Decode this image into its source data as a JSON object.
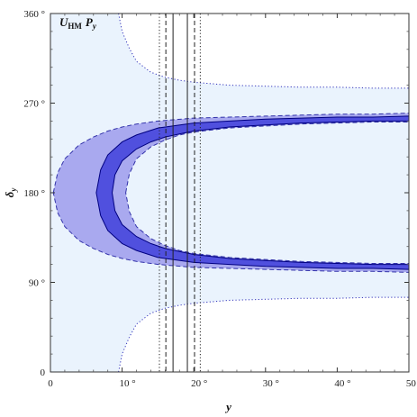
{
  "chart_data": {
    "type": "area",
    "annotation": {
      "main": "U",
      "sub": "HM",
      "extra": "P",
      "extra_sub": "y"
    },
    "xlabel": "y",
    "ylabel": {
      "main": "δ",
      "sub": "y"
    },
    "xlim": [
      0,
      50
    ],
    "ylim": [
      0,
      360
    ],
    "x_ticks": [
      0,
      10,
      20,
      30,
      40,
      50
    ],
    "x_tick_labels": [
      "0",
      "10 °",
      "20 °",
      "30 °",
      "40 °",
      "50 °"
    ],
    "y_ticks": [
      0,
      90,
      180,
      270,
      360
    ],
    "y_tick_labels": [
      "0",
      "90 °",
      "180 °",
      "270 °",
      "360 °"
    ],
    "series": [
      {
        "role": "outer-region",
        "color": "#eaf3fd",
        "stroke": "#3333bb",
        "style": "dotted",
        "upper": {
          "x": [
            9.5,
            10,
            11,
            12,
            14,
            16,
            18,
            20,
            25,
            30,
            35,
            40,
            45,
            50
          ],
          "y": [
            360,
            342,
            325,
            312,
            301,
            296,
            293,
            291,
            288,
            287,
            286,
            286,
            285,
            285
          ]
        },
        "lower": {
          "x": [
            9.5,
            10,
            11,
            12,
            14,
            16,
            18,
            20,
            25,
            30,
            35,
            40,
            45,
            50
          ],
          "y": [
            0,
            18,
            35,
            48,
            59,
            64,
            67,
            69,
            72,
            73,
            74,
            74,
            75,
            75
          ]
        },
        "left_open": true
      },
      {
        "role": "mid-band",
        "color": "#a9a9ef",
        "stroke": "#3333aa",
        "style": "dashed",
        "outer_upper": {
          "x": [
            0.4,
            1,
            2,
            4,
            6,
            8,
            10,
            12,
            15,
            20,
            25,
            30,
            35,
            40,
            45,
            50
          ],
          "y": [
            180,
            200,
            214,
            228,
            236,
            242,
            246,
            249,
            252,
            255,
            256,
            257,
            258,
            259,
            259,
            260
          ]
        },
        "outer_lower": {
          "x": [
            0.4,
            1,
            2,
            4,
            6,
            8,
            10,
            12,
            15,
            20,
            25,
            30,
            35,
            40,
            45,
            50
          ],
          "y": [
            180,
            160,
            146,
            132,
            124,
            118,
            114,
            111,
            108,
            105,
            104,
            103,
            102,
            101,
            101,
            100
          ]
        },
        "inner_upper": {
          "x": [
            10.5,
            11,
            12,
            14,
            16,
            18,
            20,
            25,
            30,
            35,
            40,
            45,
            50
          ],
          "y": [
            180,
            199,
            214,
            226,
            233,
            238,
            241,
            245,
            247,
            249,
            250,
            251,
            251
          ]
        },
        "inner_lower": {
          "x": [
            10.5,
            11,
            12,
            14,
            16,
            18,
            20,
            25,
            30,
            35,
            40,
            45,
            50
          ],
          "y": [
            180,
            161,
            146,
            134,
            127,
            122,
            119,
            115,
            113,
            111,
            110,
            109,
            109
          ]
        }
      },
      {
        "role": "inner-band",
        "color": "#5050de",
        "stroke": "#000080",
        "style": "solid",
        "outer_upper": {
          "x": [
            6.4,
            7,
            8,
            10,
            12,
            15,
            20,
            25,
            30,
            35,
            40,
            45,
            50
          ],
          "y": [
            180,
            203,
            218,
            231,
            238,
            245,
            250,
            252,
            254,
            255,
            256,
            256,
            257
          ]
        },
        "outer_lower": {
          "x": [
            6.4,
            7,
            8,
            10,
            12,
            15,
            20,
            25,
            30,
            35,
            40,
            45,
            50
          ],
          "y": [
            180,
            157,
            142,
            129,
            122,
            115,
            110,
            108,
            106,
            105,
            104,
            104,
            103
          ]
        },
        "inner_upper": {
          "x": [
            8.6,
            9,
            10,
            12,
            14,
            16,
            18,
            20,
            25,
            30,
            35,
            40,
            45,
            50
          ],
          "y": [
            180,
            198,
            212,
            224,
            231,
            236,
            239,
            242,
            246,
            248,
            250,
            251,
            252,
            252
          ]
        },
        "inner_lower": {
          "x": [
            8.6,
            9,
            10,
            12,
            14,
            16,
            18,
            20,
            25,
            30,
            35,
            40,
            45,
            50
          ],
          "y": [
            180,
            162,
            148,
            136,
            129,
            124,
            121,
            118,
            114,
            112,
            110,
            109,
            108,
            108
          ]
        }
      }
    ],
    "vertical_lines": [
      {
        "x": 15.2,
        "style": "dotted"
      },
      {
        "x": 16.1,
        "style": "dashed"
      },
      {
        "x": 17.1,
        "style": "solid"
      },
      {
        "x": 19.1,
        "style": "solid"
      },
      {
        "x": 20.1,
        "style": "dashed"
      },
      {
        "x": 20.9,
        "style": "dotted"
      }
    ],
    "grid": false
  }
}
